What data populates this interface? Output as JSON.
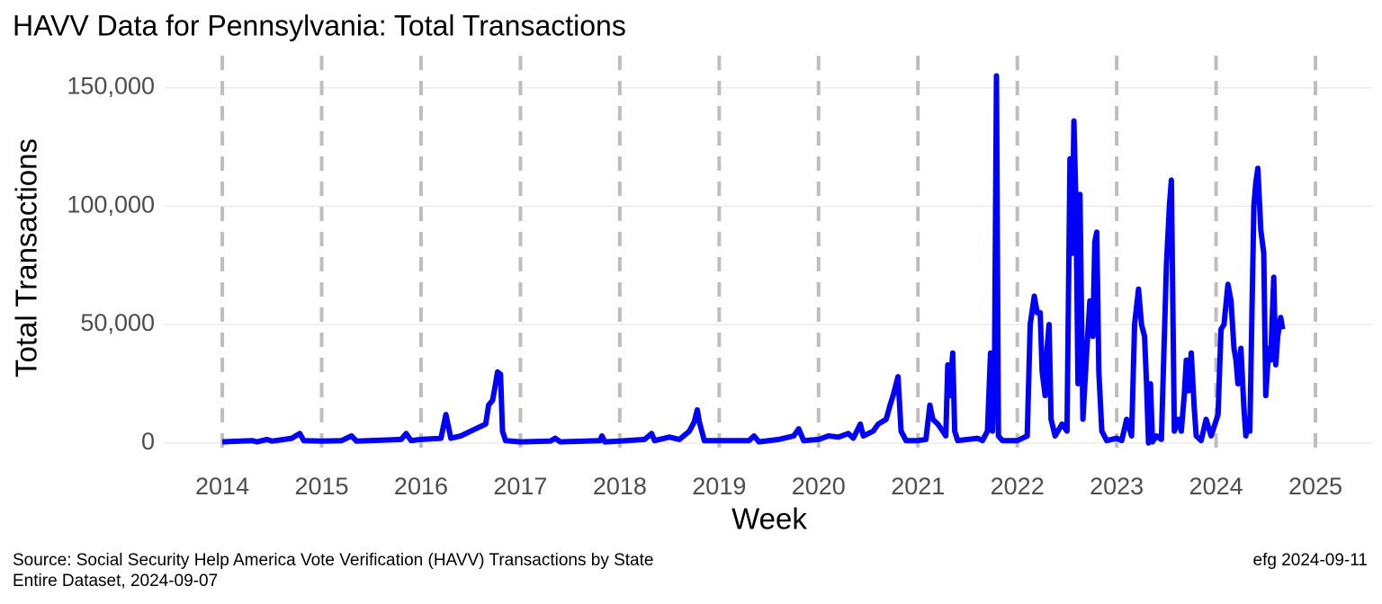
{
  "chart_data": {
    "type": "line",
    "title": "HAVV Data for Pennsylvania:  Total Transactions",
    "x_label": "Week",
    "y_label": "Total Transactions",
    "caption_left": [
      "Source:  Social Security Help America Vote Verification (HAVV) Transactions by State",
      "Entire Dataset, 2024-09-07"
    ],
    "caption_right": "efg 2024-09-11",
    "xlim": [
      2013.42,
      2025.57
    ],
    "ylim": [
      -6500,
      163500
    ],
    "xticks": [
      2014,
      2015,
      2016,
      2017,
      2018,
      2019,
      2020,
      2021,
      2022,
      2023,
      2024,
      2025
    ],
    "yticks": [
      0,
      {
        "value": 50000,
        "label": "50,000"
      },
      {
        "value": 100000,
        "label": "100,000"
      },
      {
        "value": 150000,
        "label": "150,000"
      }
    ],
    "grid": true,
    "series": [
      {
        "color": "#0000ff",
        "x": [
          2014.0,
          2014.3,
          2014.35,
          2014.45,
          2014.5,
          2014.7,
          2014.78,
          2014.82,
          2015.0,
          2015.2,
          2015.3,
          2015.35,
          2015.6,
          2015.8,
          2015.85,
          2015.9,
          2016.0,
          2016.2,
          2016.25,
          2016.3,
          2016.4,
          2016.5,
          2016.6,
          2016.65,
          2016.68,
          2016.72,
          2016.75,
          2016.77,
          2016.8,
          2016.82,
          2016.85,
          2017.0,
          2017.3,
          2017.35,
          2017.4,
          2017.8,
          2017.82,
          2017.85,
          2018.0,
          2018.25,
          2018.32,
          2018.35,
          2018.5,
          2018.6,
          2018.7,
          2018.75,
          2018.78,
          2018.8,
          2018.85,
          2019.0,
          2019.3,
          2019.35,
          2019.4,
          2019.6,
          2019.75,
          2019.8,
          2019.85,
          2020.0,
          2020.1,
          2020.2,
          2020.3,
          2020.35,
          2020.42,
          2020.45,
          2020.55,
          2020.6,
          2020.68,
          2020.72,
          2020.75,
          2020.8,
          2020.83,
          2020.88,
          2021.0,
          2021.08,
          2021.12,
          2021.15,
          2021.2,
          2021.25,
          2021.28,
          2021.3,
          2021.32,
          2021.35,
          2021.37,
          2021.4,
          2021.6,
          2021.65,
          2021.7,
          2021.73,
          2021.75,
          2021.77,
          2021.79,
          2021.81,
          2021.85,
          2022.0,
          2022.1,
          2022.13,
          2022.17,
          2022.2,
          2022.23,
          2022.25,
          2022.28,
          2022.3,
          2022.32,
          2022.34,
          2022.38,
          2022.45,
          2022.5,
          2022.53,
          2022.55,
          2022.57,
          2022.59,
          2022.61,
          2022.63,
          2022.66,
          2022.7,
          2022.73,
          2022.76,
          2022.78,
          2022.8,
          2022.82,
          2022.85,
          2022.9,
          2023.0,
          2023.05,
          2023.1,
          2023.15,
          2023.18,
          2023.22,
          2023.25,
          2023.28,
          2023.3,
          2023.32,
          2023.34,
          2023.36,
          2023.4,
          2023.45,
          2023.5,
          2023.53,
          2023.55,
          2023.58,
          2023.62,
          2023.65,
          2023.68,
          2023.7,
          2023.72,
          2023.75,
          2023.78,
          2023.8,
          2023.85,
          2023.9,
          2023.95,
          2024.02,
          2024.05,
          2024.08,
          2024.12,
          2024.15,
          2024.18,
          2024.2,
          2024.22,
          2024.25,
          2024.28,
          2024.3,
          2024.32,
          2024.34,
          2024.38,
          2024.4,
          2024.42,
          2024.45,
          2024.48,
          2024.5,
          2024.53,
          2024.55,
          2024.58,
          2024.6,
          2024.62,
          2024.65,
          2024.67
        ],
        "values": [
          500,
          1000,
          500,
          1500,
          800,
          2000,
          4000,
          1000,
          800,
          1000,
          3000,
          800,
          1200,
          1500,
          4000,
          1000,
          1500,
          2000,
          12000,
          2000,
          3000,
          5000,
          7000,
          8000,
          16000,
          18000,
          25000,
          30000,
          29000,
          5000,
          1000,
          500,
          800,
          2000,
          500,
          1000,
          3000,
          500,
          800,
          1500,
          4000,
          1000,
          2500,
          1500,
          5000,
          9000,
          14000,
          9000,
          1000,
          1000,
          1000,
          3000,
          500,
          1500,
          3000,
          6000,
          1000,
          1500,
          3000,
          2500,
          4000,
          2000,
          8000,
          3000,
          5000,
          8000,
          10000,
          16000,
          20000,
          28000,
          5000,
          1000,
          1000,
          1500,
          16000,
          10000,
          8000,
          5000,
          3000,
          33000,
          20000,
          38000,
          5000,
          1000,
          2000,
          1000,
          5000,
          38000,
          5000,
          30000,
          155000,
          3000,
          1000,
          1000,
          3000,
          50000,
          62000,
          55000,
          55000,
          30000,
          20000,
          40000,
          50000,
          10000,
          3000,
          8000,
          5000,
          120000,
          80000,
          136000,
          100000,
          25000,
          105000,
          10000,
          40000,
          60000,
          45000,
          85000,
          89000,
          30000,
          5000,
          1000,
          2000,
          1000,
          10000,
          3000,
          50000,
          65000,
          50000,
          45000,
          25000,
          0,
          25000,
          500,
          3000,
          1500,
          75000,
          100000,
          111000,
          5000,
          10000,
          5000,
          20000,
          35000,
          22000,
          38000,
          15000,
          3000,
          1000,
          10000,
          3000,
          12000,
          48000,
          50000,
          67000,
          60000,
          40000,
          35000,
          25000,
          40000,
          15000,
          3000,
          10000,
          5000,
          100000,
          110000,
          116000,
          90000,
          80000,
          20000,
          40000,
          35000,
          70000,
          33000,
          45000,
          53000,
          48000
        ]
      }
    ]
  }
}
